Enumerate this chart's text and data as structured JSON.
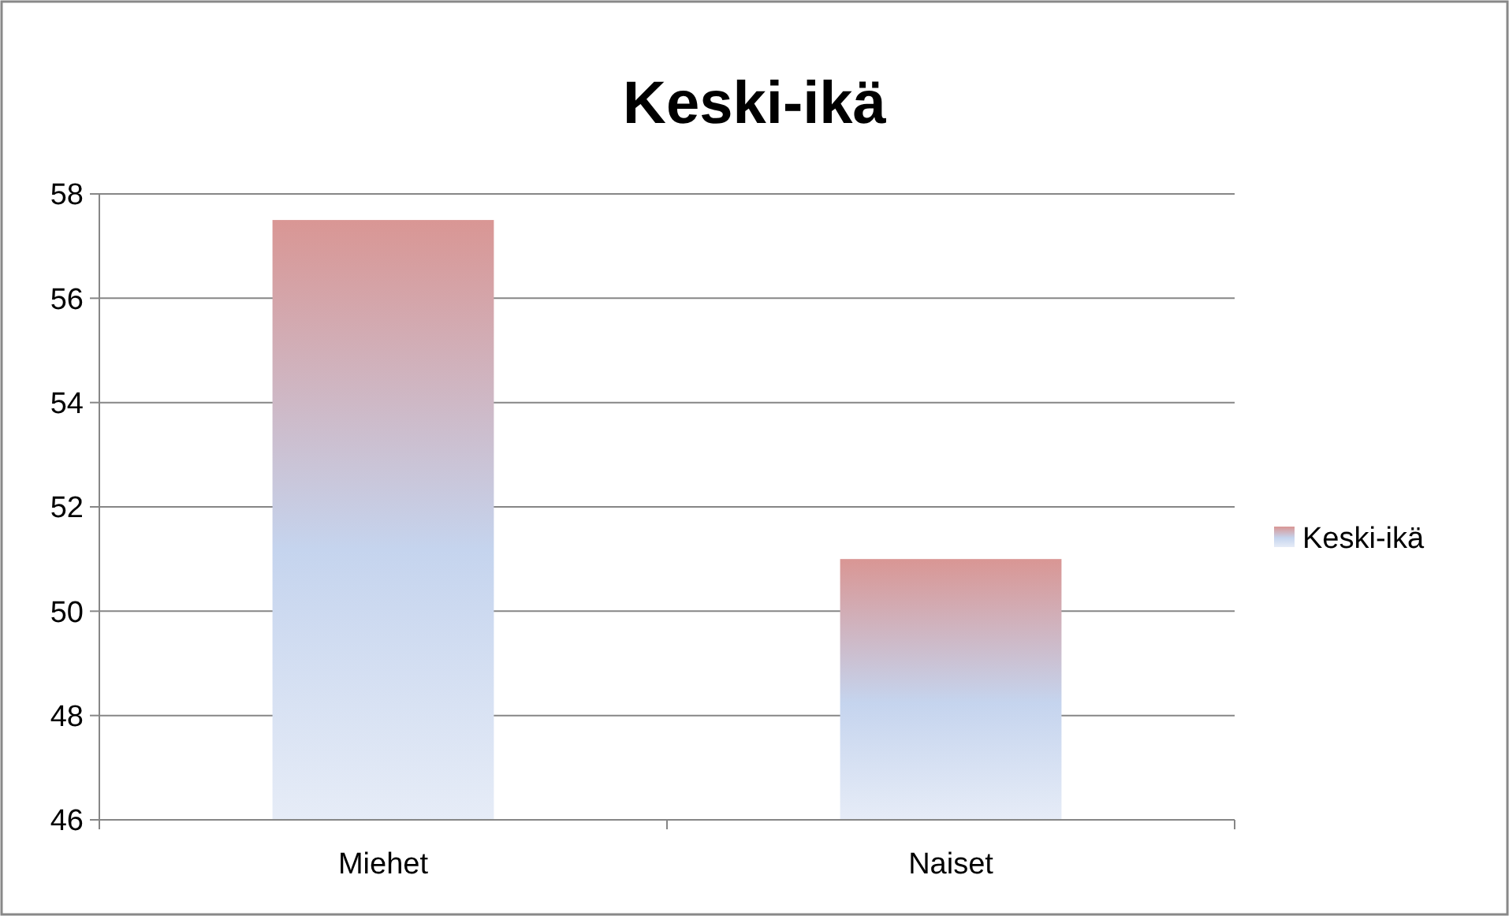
{
  "chart_data": {
    "type": "bar",
    "title": "Keski-ikä",
    "categories": [
      "Miehet",
      "Naiset"
    ],
    "series": [
      {
        "name": "Keski-ikä",
        "color": "#d99694",
        "values": [
          57.5,
          51
        ]
      }
    ],
    "ylim": [
      46,
      58
    ],
    "yticks": [
      46,
      48,
      50,
      52,
      54,
      56,
      58
    ],
    "grid": "y",
    "legend": "right"
  }
}
